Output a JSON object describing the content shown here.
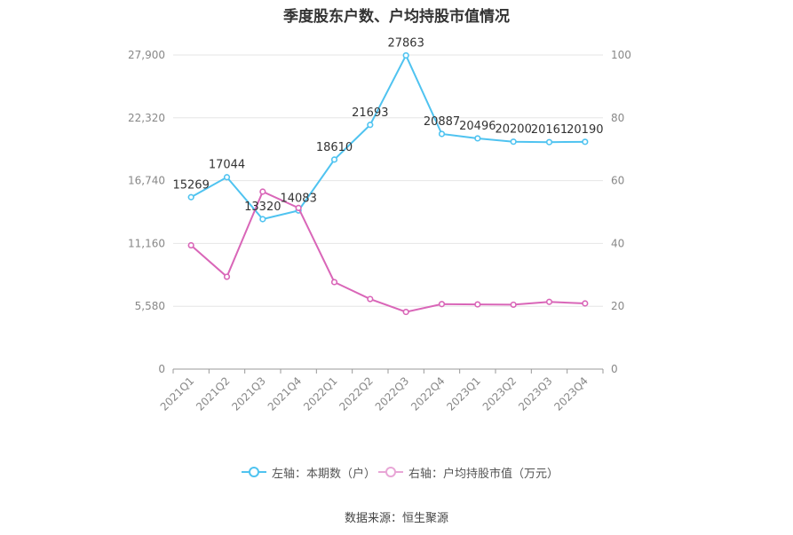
{
  "title": "季度股东户数、户均持股市值情况",
  "source": "数据来源：恒生聚源",
  "colors": {
    "left_series": "#4fc3f0",
    "right_series": "#d966b8",
    "grid": "#e6e6e6",
    "axis": "#999999"
  },
  "chart_data": {
    "type": "line",
    "title": "季度股东户数、户均持股市值情况",
    "categories": [
      "2021Q1",
      "2021Q2",
      "2021Q3",
      "2021Q4",
      "2022Q1",
      "2022Q2",
      "2022Q3",
      "2022Q4",
      "2023Q1",
      "2023Q2",
      "2023Q3",
      "2023Q4"
    ],
    "left_axis": {
      "ticks": [
        "0",
        "5,580",
        "11,160",
        "16,740",
        "22,320",
        "27,900"
      ],
      "ylim": [
        0,
        27900
      ]
    },
    "right_axis": {
      "ticks": [
        "0",
        "20",
        "40",
        "60",
        "80",
        "100"
      ],
      "ylim": [
        0,
        100
      ]
    },
    "series": [
      {
        "name": "左轴：本期数（户）",
        "axis": "left",
        "values": [
          15269,
          17044,
          13320,
          14083,
          18610,
          21693,
          27863,
          20887,
          20496,
          20200,
          20161,
          20190
        ],
        "labels": [
          "15269",
          "17044",
          "13320",
          "14083",
          "18610",
          "21693",
          "27863",
          "20887",
          "20496",
          "20200",
          "20161",
          "20190"
        ]
      },
      {
        "name": "右轴：户均持股市值（万元）",
        "axis": "right",
        "values": [
          39.4,
          29.4,
          56.5,
          51.3,
          27.7,
          22.3,
          18.2,
          20.7,
          20.6,
          20.5,
          21.4,
          20.9
        ]
      }
    ],
    "grid": true,
    "legend_position": "bottom"
  }
}
